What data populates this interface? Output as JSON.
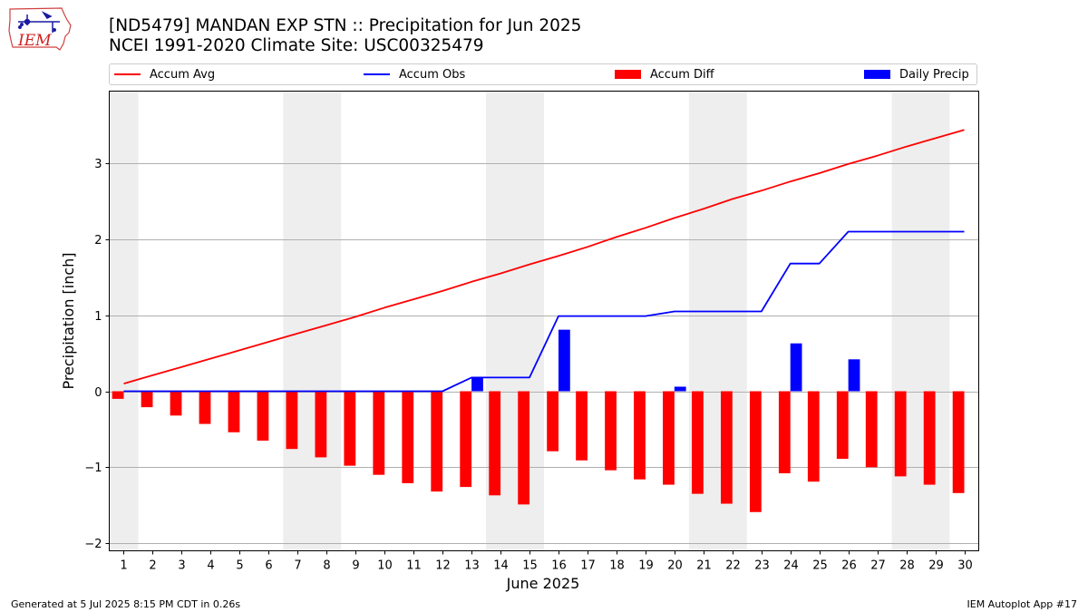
{
  "header": {
    "logo_text": "IEM",
    "title": "[ND5479] MANDAN EXP STN :: Precipitation for Jun 2025",
    "subtitle": "NCEI 1991-2020 Climate Site: USC00325479"
  },
  "legend": {
    "items": [
      {
        "label": "Accum Avg",
        "color": "#ff0000",
        "kind": "line"
      },
      {
        "label": "Accum Obs",
        "color": "#0000ff",
        "kind": "line"
      },
      {
        "label": "Accum Diff",
        "color": "#ff0000",
        "kind": "patch"
      },
      {
        "label": "Daily Precip",
        "color": "#0000ff",
        "kind": "patch"
      }
    ]
  },
  "chart_data": {
    "type": "bar",
    "xlabel": "June 2025",
    "ylabel": "Precipitation [inch]",
    "ylim": [
      -2.1,
      3.95
    ],
    "yticks": [
      -2,
      -1,
      0,
      1,
      2,
      3
    ],
    "ytick_labels": [
      "−2",
      "−1",
      "0",
      "1",
      "2",
      "3"
    ],
    "xlim": [
      0.5,
      30.5
    ],
    "categories": [
      1,
      2,
      3,
      4,
      5,
      6,
      7,
      8,
      9,
      10,
      11,
      12,
      13,
      14,
      15,
      16,
      17,
      18,
      19,
      20,
      21,
      22,
      23,
      24,
      25,
      26,
      27,
      28,
      29,
      30
    ],
    "weekend_bands": [
      [
        0.5,
        1.5
      ],
      [
        6.5,
        8.5
      ],
      [
        13.5,
        15.5
      ],
      [
        20.5,
        22.5
      ],
      [
        27.5,
        29.5
      ]
    ],
    "grid": "horizontal",
    "series": [
      {
        "name": "Accum Avg",
        "type": "line",
        "color": "#ff0000",
        "values": [
          0.1,
          0.21,
          0.32,
          0.43,
          0.54,
          0.65,
          0.76,
          0.87,
          0.98,
          1.1,
          1.21,
          1.32,
          1.44,
          1.55,
          1.67,
          1.78,
          1.9,
          2.03,
          2.15,
          2.28,
          2.4,
          2.53,
          2.64,
          2.76,
          2.87,
          2.99,
          3.1,
          3.22,
          3.33,
          3.44
        ]
      },
      {
        "name": "Accum Obs",
        "type": "line",
        "color": "#0000ff",
        "values": [
          0,
          0,
          0,
          0,
          0,
          0,
          0,
          0,
          0,
          0,
          0,
          0,
          0.18,
          0.18,
          0.18,
          0.99,
          0.99,
          0.99,
          0.99,
          1.05,
          1.05,
          1.05,
          1.05,
          1.68,
          1.68,
          2.1,
          2.1,
          2.1,
          2.1,
          2.1
        ]
      },
      {
        "name": "Accum Diff",
        "type": "bar",
        "color": "#ff0000",
        "values": [
          -0.1,
          -0.21,
          -0.32,
          -0.43,
          -0.54,
          -0.65,
          -0.76,
          -0.87,
          -0.98,
          -1.1,
          -1.21,
          -1.32,
          -1.26,
          -1.37,
          -1.49,
          -0.79,
          -0.91,
          -1.04,
          -1.16,
          -1.23,
          -1.35,
          -1.48,
          -1.59,
          -1.08,
          -1.19,
          -0.89,
          -1.0,
          -1.12,
          -1.23,
          -1.34
        ]
      },
      {
        "name": "Daily Precip",
        "type": "bar",
        "color": "#0000ff",
        "values": [
          0,
          0,
          0,
          0,
          0,
          0,
          0,
          0,
          0,
          0,
          0,
          0,
          0.18,
          0,
          0,
          0.81,
          0,
          0,
          0,
          0.06,
          0,
          0,
          0,
          0.63,
          0,
          0.42,
          0,
          0,
          0,
          0
        ]
      }
    ]
  },
  "footer": {
    "left": "Generated at 5 Jul 2025 8:15 PM CDT in 0.26s",
    "right": "IEM Autoplot App #17"
  }
}
